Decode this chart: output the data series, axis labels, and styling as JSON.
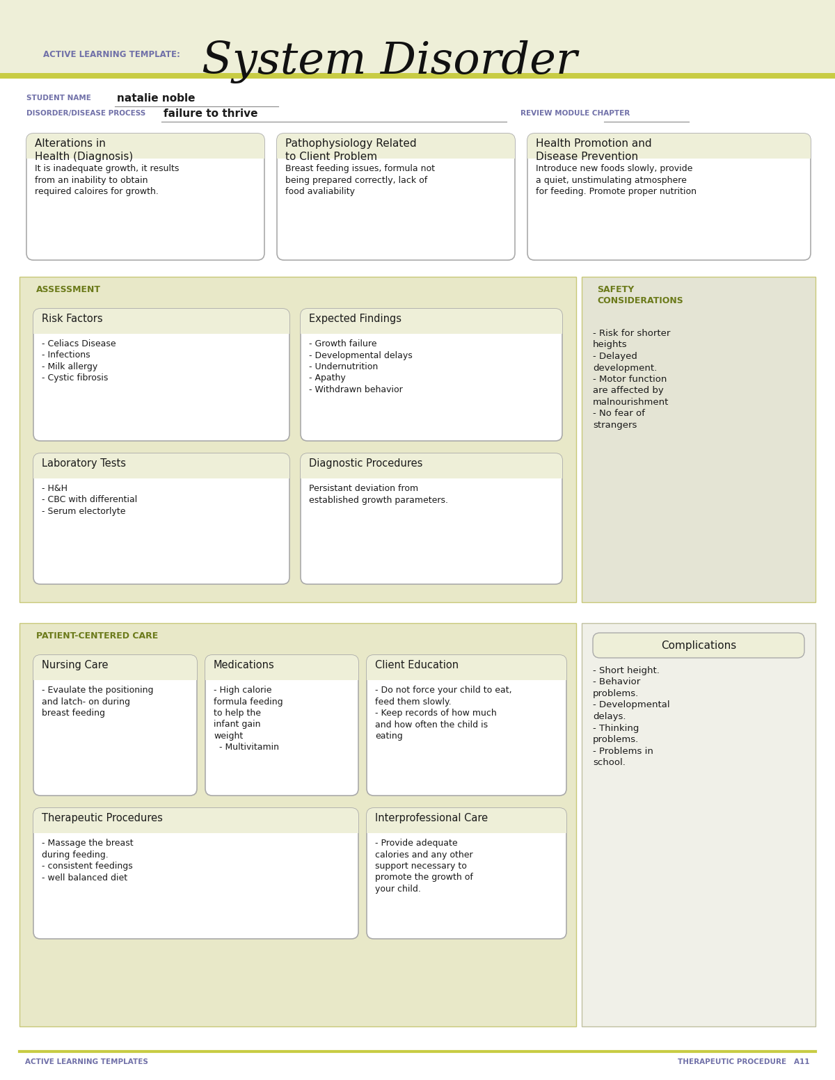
{
  "cream_bg": "#eeefd8",
  "white": "#ffffff",
  "section_bg": "#e8e8c8",
  "box_bg": "#eeefd8",
  "box_title_bg": "#e8e8c0",
  "comp_bg": "#f0f0e8",
  "safety_bg": "#e4e4d4",
  "stripe_color": "#c8cc44",
  "olive_text": "#6b7a1a",
  "purple_text": "#7070a8",
  "dark_text": "#1a1a1a",
  "border_color": "#aaaaaa",
  "title_large": "System Disorder",
  "title_small": "ACTIVE LEARNING TEMPLATE:",
  "student_label": "STUDENT NAME",
  "student_name": "natalie noble",
  "disorder_label": "DISORDER/DISEASE PROCESS",
  "disorder_name": "failure to thrive",
  "review_label": "REVIEW MODULE CHAPTER",
  "box1_title": "Alterations in\nHealth (Diagnosis)",
  "box1_body": "It is inadequate growth, it results\nfrom an inability to obtain\nrequired caloires for growth.",
  "box2_title": "Pathophysiology Related\nto Client Problem",
  "box2_body": "Breast feeding issues, formula not\nbeing prepared correctly, lack of\nfood avaliability",
  "box3_title": "Health Promotion and\nDisease Prevention",
  "box3_body": "Introduce new foods slowly, provide\na quiet, unstimulating atmosphere\nfor feeding. Promote proper nutrition",
  "assess_label": "ASSESSMENT",
  "safety_label": "SAFETY\nCONSIDERATIONS",
  "risk_title": "Risk Factors",
  "risk_body": "- Celiacs Disease\n- Infections\n- Milk allergy\n- Cystic fibrosis",
  "expected_title": "Expected Findings",
  "expected_body": "- Growth failure\n- Developmental delays\n- Undernutrition\n- Apathy\n- Withdrawn behavior",
  "safety_body": "- Risk for shorter\nheights\n- Delayed\ndevelopment.\n- Motor function\nare affected by\nmalnourishment\n- No fear of\nstrangers",
  "lab_title": "Laboratory Tests",
  "lab_body": "- H&H\n- CBC with differential\n- Serum electorlyte",
  "diag_title": "Diagnostic Procedures",
  "diag_body": "Persistant deviation from\nestablished growth parameters.",
  "patient_label": "PATIENT-CENTERED CARE",
  "complications_title": "Complications",
  "complications_body": "- Short height.\n- Behavior\nproblems.\n- Developmental\ndelays.\n- Thinking\nproblems.\n- Problems in\nschool.",
  "nursing_title": "Nursing Care",
  "nursing_body": "- Evaulate the positioning\nand latch- on during\nbreast feeding",
  "meds_title": "Medications",
  "meds_body": "- High calorie\nformula feeding\nto help the\ninfant gain\nweight\n  - Multivitamin",
  "client_title": "Client Education",
  "client_body": "- Do not force your child to eat,\nfeed them slowly.\n- Keep records of how much\nand how often the child is\neating",
  "therapy_title": "Therapeutic Procedures",
  "therapy_body": "- Massage the breast\nduring feeding.\n- consistent feedings\n- well balanced diet",
  "interpro_title": "Interprofessional Care",
  "interpro_body": "- Provide adequate\ncalories and any other\nsupport necessary to\npromote the growth of\nyour child.",
  "footer_left": "ACTIVE LEARNING TEMPLATES",
  "footer_right": "THERAPEUTIC PROCEDURE   A11"
}
